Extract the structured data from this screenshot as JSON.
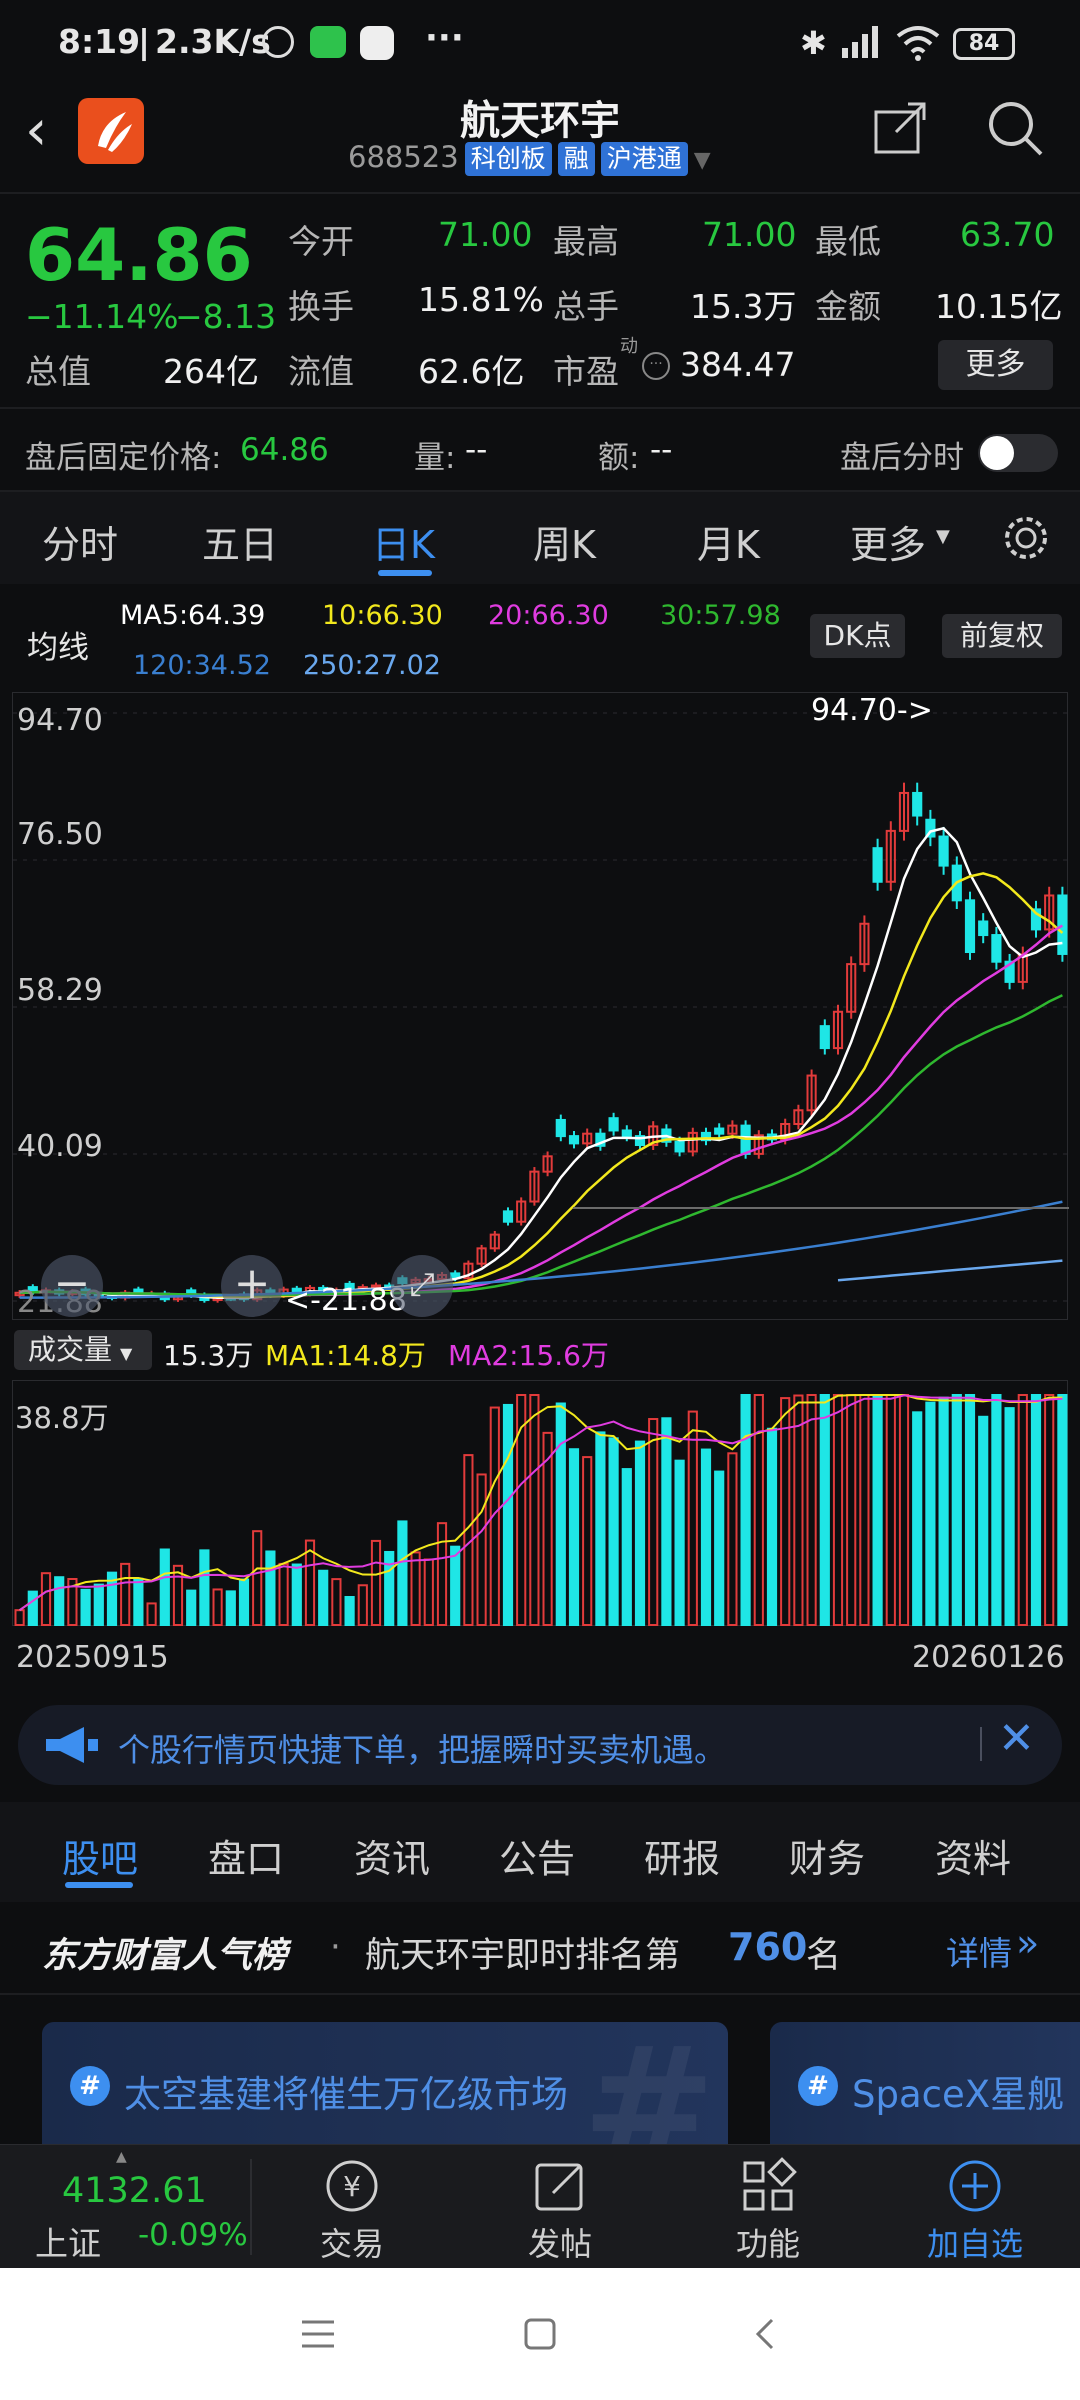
{
  "status": {
    "time": "8:19",
    "speed": "2.3K/s",
    "more": "···",
    "battery": "84"
  },
  "header": {
    "title": "航天环宇",
    "code": "688523",
    "tags": [
      "科创板",
      "融",
      "沪港通"
    ]
  },
  "quote": {
    "price": "64.86",
    "change_pct": "−11.14%",
    "change": "−8.13",
    "open_label": "今开",
    "open": "71.00",
    "high_label": "最高",
    "high": "71.00",
    "low_label": "最低",
    "low": "63.70",
    "turnover_label": "换手",
    "turnover": "15.81%",
    "volume_label": "总手",
    "volume": "15.3万",
    "amount_label": "金额",
    "amount": "10.15亿",
    "mktcap_label": "总值",
    "mktcap": "264亿",
    "float_label": "流值",
    "float": "62.6亿",
    "pe_label": "市盈",
    "pe_sup": "动",
    "pe": "384.47",
    "more_btn": "更多"
  },
  "afterhours": {
    "price_label": "盘后固定价格:",
    "price": "64.86",
    "vol_label": "量:",
    "vol": "--",
    "amt_label": "额:",
    "amt": "--",
    "timeshare": "盘后分时"
  },
  "ktabs": {
    "t0": "分时",
    "t1": "五日",
    "t2": "日K",
    "t3": "周K",
    "t4": "月K",
    "t5": "更多"
  },
  "ma": {
    "label": "均线",
    "ma5": "MA5:64.39",
    "ma10": "10:66.30",
    "ma20": "20:66.30",
    "ma30": "30:57.98",
    "ma120": "120:34.52",
    "ma250": "250:27.02",
    "dk_btn": "DK点",
    "adj_btn": "前复权"
  },
  "colors": {
    "up": "#e23b3b",
    "down": "#1fe6e6",
    "ma5": "#ffffff",
    "ma10": "#f2e81d",
    "ma20": "#e03ce0",
    "ma30": "#2fb82f",
    "ma120": "#3a7fd0",
    "ma250": "#6aa8ee"
  },
  "chart_data": {
    "type": "candlestick",
    "y_labels": [
      "94.70",
      "76.50",
      "58.29",
      "40.09",
      "21.88"
    ],
    "ylim": [
      21.88,
      94.7
    ],
    "max_label": "94.70->",
    "min_label": "<-21.88",
    "start_date": "20250915",
    "end_date": "20260126",
    "closes": [
      22.9,
      23.0,
      23.2,
      22.8,
      23.0,
      22.7,
      22.5,
      22.3,
      22.9,
      22.7,
      22.8,
      22.1,
      22.4,
      22.6,
      22.0,
      22.3,
      22.2,
      22.1,
      23.2,
      22.6,
      23.3,
      22.8,
      23.5,
      23.0,
      23.2,
      23.4,
      23.6,
      23.8,
      23.5,
      24.1,
      24.5,
      24.6,
      25.1,
      24.7,
      26.5,
      28.4,
      30.1,
      31.7,
      34.2,
      37.9,
      39.8,
      42.3,
      41.4,
      42.6,
      41.1,
      43.0,
      42.3,
      41.2,
      43.5,
      41.6,
      40.4,
      42.7,
      41.8,
      42.6,
      43.6,
      40.1,
      42.4,
      41.9,
      43.8,
      45.5,
      49.8,
      53.2,
      57.7,
      63.6,
      68.6,
      73.8,
      80.1,
      84.8,
      82.0,
      79.4,
      75.8,
      71.5,
      65.1,
      67.2,
      63.9,
      61.4,
      64.8,
      67.9,
      72.1,
      64.86
    ]
  },
  "volume": {
    "label": "成交量",
    "value": "15.3万",
    "ma1": "MA1:14.8万",
    "ma2": "MA2:15.6万",
    "max_label": "38.8万"
  },
  "banner": {
    "text": "个股行情页快捷下单，把握瞬时买卖机遇。"
  },
  "newstabs": {
    "n0": "股吧",
    "n1": "盘口",
    "n2": "资讯",
    "n3": "公告",
    "n4": "研报",
    "n5": "财务",
    "n6": "资料"
  },
  "rank": {
    "title": "东方财富人气榜",
    "dot": "·",
    "text": "航天环宇即时排名第",
    "rank": "760",
    "unit": "名",
    "detail": "详情"
  },
  "cards": {
    "c1": "太空基建将催生万亿级市场",
    "c2": "SpaceX星舰"
  },
  "bottombar": {
    "index_value": "4132.61",
    "index_name": "上证",
    "index_change": "-0.09%",
    "trade": "交易",
    "post": "发帖",
    "func": "功能",
    "watch": "加自选"
  }
}
